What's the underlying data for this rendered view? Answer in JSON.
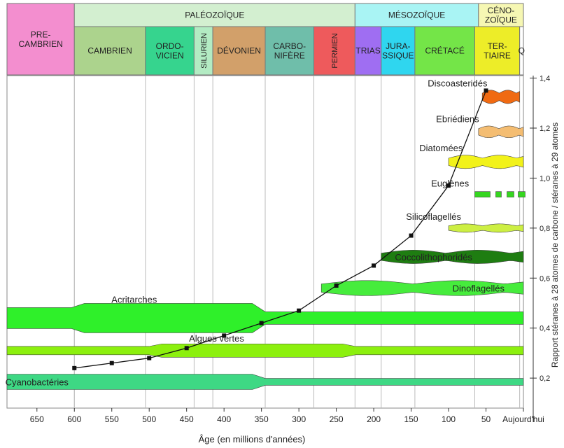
{
  "chart_data": {
    "type": "line",
    "xlabel": "Âge (en millions d'années)",
    "ylabel": "Rapport stéranes à 28 atomes de carbone / stéranes à 29 atomes",
    "x_ticks": [
      "650",
      "600",
      "550",
      "500",
      "450",
      "400",
      "350",
      "300",
      "250",
      "200",
      "150",
      "100",
      "50",
      "Aujourd'hui"
    ],
    "x_tick_values": [
      650,
      600,
      550,
      500,
      450,
      400,
      350,
      300,
      250,
      200,
      150,
      100,
      50,
      0
    ],
    "y_ticks": [
      "0,2",
      "0,4",
      "0,6",
      "0,8",
      "1,0",
      "1,2",
      "1,4"
    ],
    "y_tick_values": [
      0.2,
      0.4,
      0.6,
      0.8,
      1.0,
      1.2,
      1.4
    ],
    "xlim": [
      690,
      0
    ],
    "ylim": [
      0.08,
      1.41
    ],
    "series": [
      {
        "points": [
          {
            "x": 600,
            "y": 0.24
          },
          {
            "x": 550,
            "y": 0.26
          },
          {
            "x": 500,
            "y": 0.28
          },
          {
            "x": 450,
            "y": 0.32
          },
          {
            "x": 400,
            "y": 0.37
          },
          {
            "x": 350,
            "y": 0.42
          },
          {
            "x": 300,
            "y": 0.47
          },
          {
            "x": 250,
            "y": 0.57
          },
          {
            "x": 200,
            "y": 0.65
          },
          {
            "x": 150,
            "y": 0.77
          },
          {
            "x": 100,
            "y": 0.97
          },
          {
            "x": 50,
            "y": 1.35
          }
        ]
      }
    ],
    "eras_row": [
      {
        "label": "PRE-\nCAMBRIEN",
        "from": 690,
        "to": 600,
        "color": "#f38ecf"
      },
      {
        "label": "PALÉOZOÏQUE",
        "from": 600,
        "to": 225,
        "color": "#d3efd0"
      },
      {
        "label": "MÉSOZOÏQUE",
        "from": 225,
        "to": 60,
        "color": "#a9f4f4"
      },
      {
        "label": "CÉNO-\nZOÏQUE",
        "from": 60,
        "to": 0,
        "color": "#f6f7b3"
      }
    ],
    "periods_row": [
      {
        "label": "CAMBRIEN",
        "from": 600,
        "to": 505,
        "color": "#acd38d"
      },
      {
        "label": "ORDO-\nVICIEN",
        "from": 505,
        "to": 440,
        "color": "#36d48e"
      },
      {
        "label": "SILURIEN",
        "from": 440,
        "to": 415,
        "color": "#b3ebc3",
        "vertical": true
      },
      {
        "label": "DÉVONIEN",
        "from": 415,
        "to": 345,
        "color": "#d2a06a"
      },
      {
        "label": "CARBO-\nNIFÈRE",
        "from": 345,
        "to": 280,
        "color": "#6fbeaa"
      },
      {
        "label": "PERMIEN",
        "from": 280,
        "to": 225,
        "color": "#ee5a5c",
        "vertical": true
      },
      {
        "label": "TRIAS",
        "from": 225,
        "to": 190,
        "color": "#9f6ef2"
      },
      {
        "label": "JURA-\nSSIQUE",
        "from": 190,
        "to": 145,
        "color": "#2fd6ef"
      },
      {
        "label": "CRÉTACÉ",
        "from": 145,
        "to": 65,
        "color": "#74e548"
      },
      {
        "label": "TER-\nTIAIRE",
        "from": 65,
        "to": 5,
        "color": "#eded28"
      },
      {
        "label": "Q",
        "from": 5,
        "to": 0,
        "color": "#ffffff"
      }
    ],
    "groups": [
      {
        "name": "Discoasteridés",
        "from": 55,
        "to": 5,
        "y": 1.325,
        "color": "#f06a12",
        "label_x": 88
      },
      {
        "name": "Ebriédiens",
        "from": 60,
        "to": 0,
        "y": 1.185,
        "color": "#f4bd72",
        "label_x": 88
      },
      {
        "name": "Diatomées",
        "from": 100,
        "to": 0,
        "y": 1.065,
        "color": "#f2f21a",
        "label_x": 110
      },
      {
        "name": "Euglènes",
        "from": 65,
        "to": 0,
        "y": 0.935,
        "color": "#35d61f",
        "label_x": 98
      },
      {
        "name": "Silicoflagellés",
        "from": 100,
        "to": 0,
        "y": 0.8,
        "color": "#cdef43",
        "label_x": 120
      },
      {
        "name": "Coccolithophoridés",
        "from": 190,
        "to": 0,
        "y": 0.685,
        "color": "#1e7d11",
        "label_x": 120
      },
      {
        "name": "Dinoflagellés",
        "from": 270,
        "to": 0,
        "y": 0.56,
        "color": "#46ec3c",
        "label_x": 60
      },
      {
        "name": "Acritarches",
        "from": 690,
        "to": 0,
        "y": 0.44,
        "color": "#2ff02a",
        "label_x": 520
      },
      {
        "name": "Algues vertes",
        "from": 690,
        "to": 0,
        "y": 0.31,
        "color": "#8cf00e",
        "label_x": 410
      },
      {
        "name": "Cyanobactéries",
        "from": 690,
        "to": 0,
        "y": 0.185,
        "color": "#3ed884",
        "label_x": 650
      }
    ]
  }
}
